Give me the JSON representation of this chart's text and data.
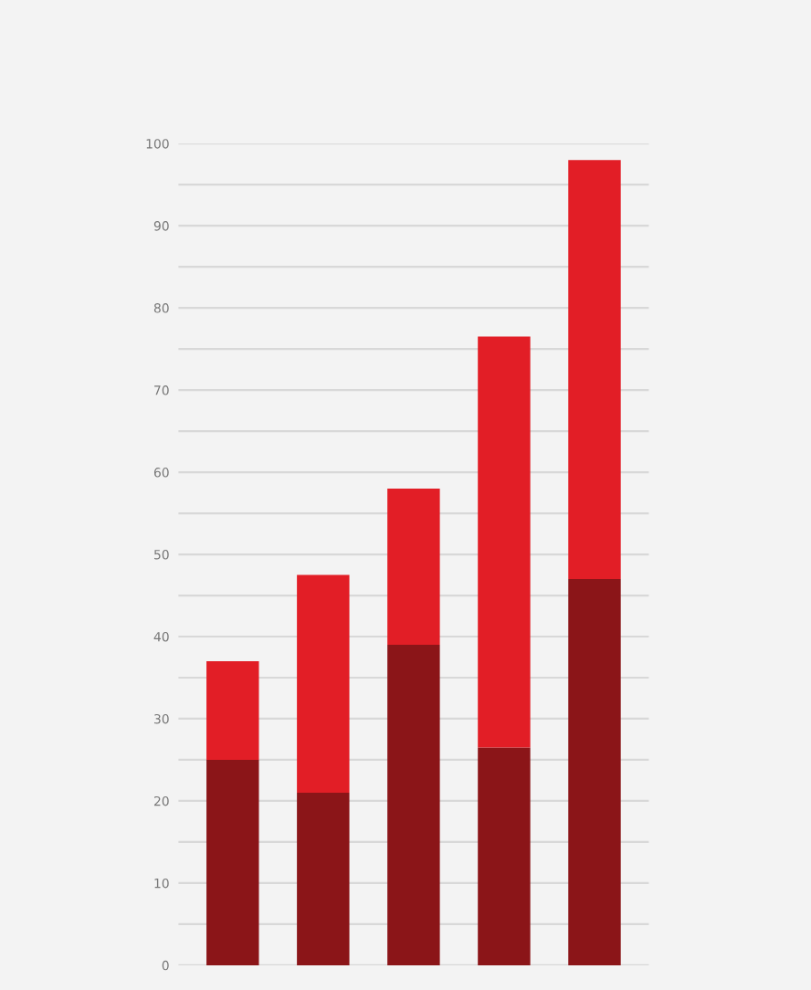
{
  "chart_data": {
    "type": "bar",
    "stacked": true,
    "categories": [
      null,
      null,
      null,
      null,
      null
    ],
    "series": [
      {
        "color": "#8b1518",
        "values": [
          25,
          21,
          39,
          26.5,
          47
        ]
      },
      {
        "color": "#e21e26",
        "values": [
          12,
          26.5,
          19,
          50,
          51
        ]
      }
    ],
    "ylim": [
      0,
      100
    ],
    "yticks": [
      0,
      {
        "value": 5,
        "label": null
      },
      10,
      {
        "value": 15,
        "label": null
      },
      20,
      {
        "value": 25,
        "label": null
      },
      30,
      {
        "value": 35,
        "label": null
      },
      40,
      {
        "value": 45,
        "label": null
      },
      50,
      {
        "value": 55,
        "label": null
      },
      60,
      {
        "value": 65,
        "label": null
      },
      70,
      {
        "value": 75,
        "label": null
      },
      80,
      {
        "value": 85,
        "label": null
      },
      90,
      {
        "value": 95,
        "label": null
      },
      100
    ],
    "grid": "y"
  }
}
